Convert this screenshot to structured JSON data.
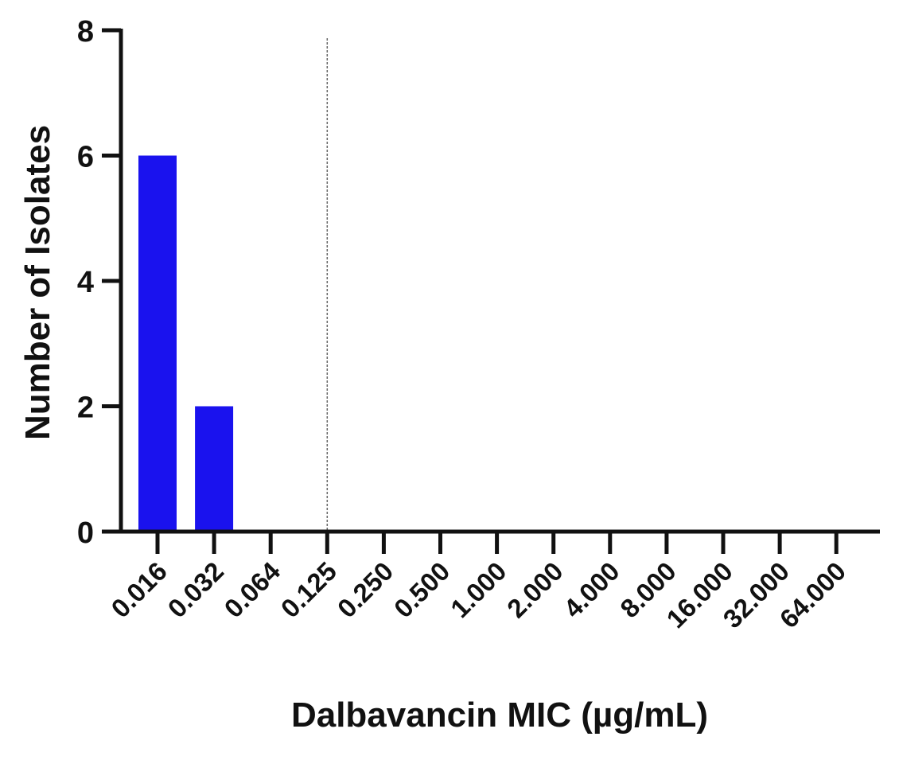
{
  "chart_data": {
    "type": "bar",
    "title": "",
    "xlabel": "Dalbavancin MIC (µg/mL)",
    "ylabel": "Number of Isolates",
    "categories": [
      "0.016",
      "0.032",
      "0.064",
      "0.125",
      "0.250",
      "0.500",
      "1.000",
      "2.000",
      "4.000",
      "8.000",
      "16.000",
      "32.000",
      "64.000"
    ],
    "values": [
      6,
      2,
      0,
      0,
      0,
      0,
      0,
      0,
      0,
      0,
      0,
      0,
      0
    ],
    "ylim": [
      0,
      8
    ],
    "yticks": [
      0,
      2,
      4,
      6,
      8
    ],
    "reference_line_at_category": "0.125",
    "grid": false,
    "colors": {
      "bar": "#1a12ee",
      "axis": "#111111",
      "reference_line": "#666666"
    }
  }
}
